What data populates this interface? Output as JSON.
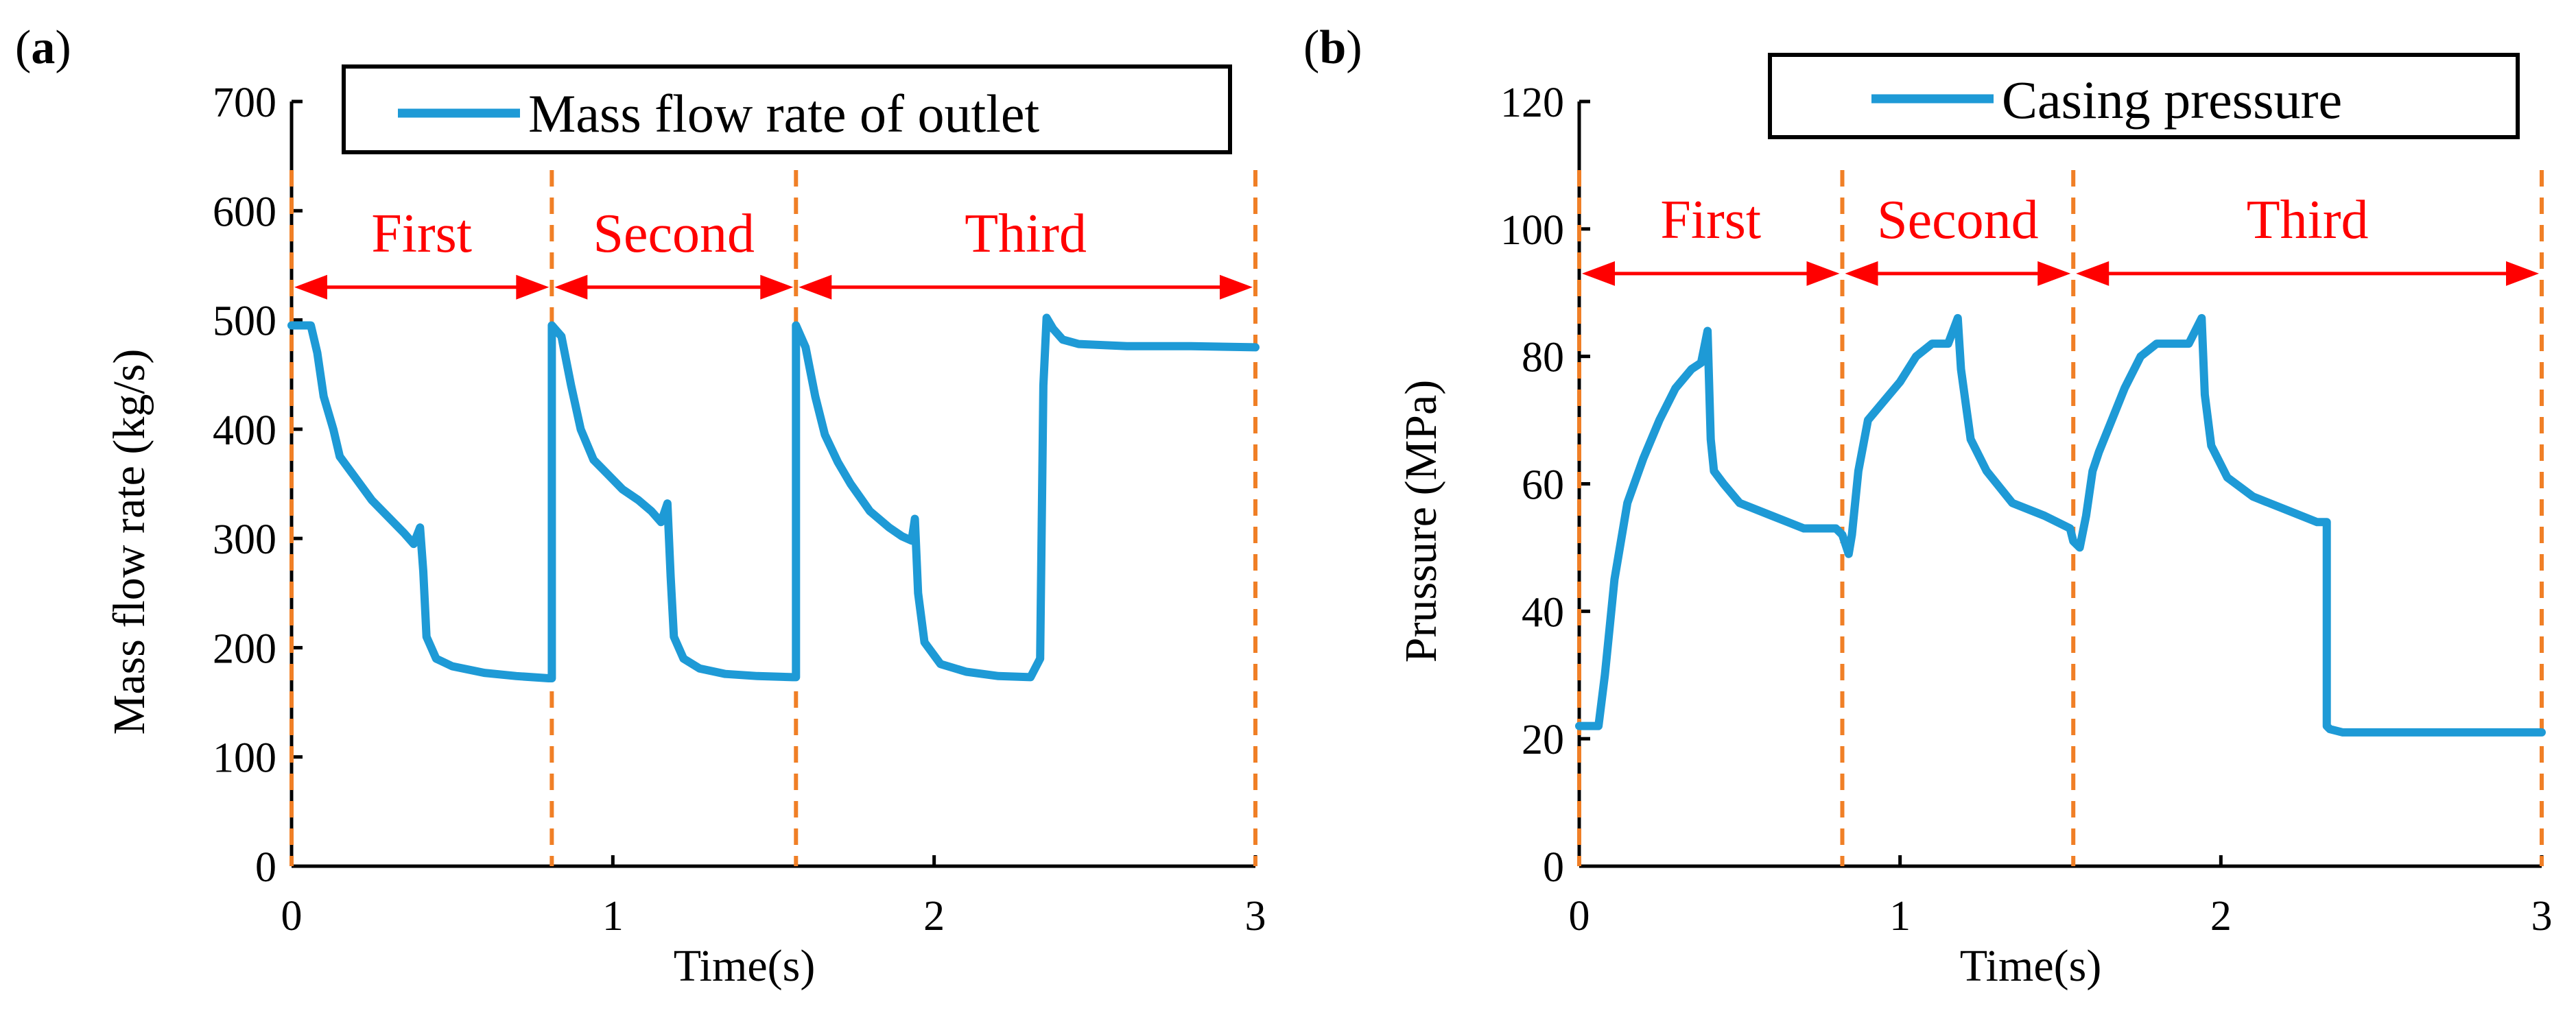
{
  "chart_data": [
    {
      "type": "line",
      "panel_label": "(a)",
      "title": "",
      "xlabel": "Time(s)",
      "ylabel": "Mass flow rate (kg/s)",
      "xlim": [
        0,
        3
      ],
      "ylim": [
        0,
        700
      ],
      "x_ticks": [
        "0",
        "1",
        "2",
        "3"
      ],
      "y_ticks": [
        "0",
        "100",
        "200",
        "300",
        "400",
        "500",
        "600",
        "700"
      ],
      "legend": {
        "position": "top-center",
        "entries": [
          "Mass flow rate of outlet"
        ]
      },
      "grid": false,
      "line_color": "#1e9ad6",
      "divider_color": "#f07f26",
      "phase_color": "#ff0000",
      "dividers_x": [
        0,
        0.81,
        1.57,
        3.0
      ],
      "phase_arrow_y": 530,
      "phases": [
        {
          "label": "First",
          "x_start": 0,
          "x_end": 0.81
        },
        {
          "label": "Second",
          "x_start": 0.81,
          "x_end": 1.57
        },
        {
          "label": "Third",
          "x_start": 1.57,
          "x_end": 3.0
        }
      ],
      "series": [
        {
          "name": "Mass flow rate of outlet",
          "x": [
            0,
            0.06,
            0.08,
            0.1,
            0.13,
            0.15,
            0.2,
            0.25,
            0.3,
            0.35,
            0.38,
            0.4,
            0.41,
            0.42,
            0.45,
            0.5,
            0.6,
            0.7,
            0.8,
            0.81,
            0.81,
            0.84,
            0.87,
            0.9,
            0.94,
            0.98,
            1.03,
            1.08,
            1.12,
            1.15,
            1.17,
            1.18,
            1.19,
            1.22,
            1.27,
            1.35,
            1.45,
            1.56,
            1.57,
            1.57,
            1.6,
            1.63,
            1.66,
            1.7,
            1.74,
            1.8,
            1.86,
            1.9,
            1.93,
            1.94,
            1.95,
            1.97,
            2.02,
            2.1,
            2.2,
            2.3,
            2.33,
            2.34,
            2.35,
            2.37,
            2.4,
            2.45,
            2.6,
            2.8,
            3.0
          ],
          "values": [
            495,
            495,
            470,
            430,
            400,
            375,
            355,
            335,
            320,
            305,
            295,
            310,
            270,
            210,
            190,
            183,
            177,
            174,
            172,
            172,
            495,
            485,
            440,
            400,
            372,
            360,
            345,
            335,
            325,
            315,
            332,
            265,
            210,
            190,
            181,
            176,
            174,
            173,
            173,
            495,
            475,
            430,
            395,
            370,
            350,
            325,
            310,
            302,
            298,
            318,
            250,
            205,
            185,
            178,
            174,
            173,
            190,
            440,
            502,
            492,
            482,
            478,
            476,
            476,
            475
          ]
        }
      ]
    },
    {
      "type": "line",
      "panel_label": "(b)",
      "title": "",
      "xlabel": "Time(s)",
      "ylabel": "Prussure (MPa)",
      "xlim": [
        0,
        3
      ],
      "ylim": [
        0,
        120
      ],
      "x_ticks": [
        "0",
        "1",
        "2",
        "3"
      ],
      "y_ticks": [
        "0",
        "20",
        "40",
        "60",
        "80",
        "100",
        "120"
      ],
      "legend": {
        "position": "top-right",
        "entries": [
          "Casing pressure"
        ]
      },
      "grid": false,
      "line_color": "#1e9ad6",
      "divider_color": "#f07f26",
      "phase_color": "#ff0000",
      "dividers_x": [
        0,
        0.82,
        1.54,
        3.0
      ],
      "phase_arrow_y": 93,
      "phases": [
        {
          "label": "First",
          "x_start": 0,
          "x_end": 0.82
        },
        {
          "label": "Second",
          "x_start": 0.82,
          "x_end": 1.54
        },
        {
          "label": "Third",
          "x_start": 1.54,
          "x_end": 3.0
        }
      ],
      "series": [
        {
          "name": "Casing pressure",
          "x": [
            0,
            0.06,
            0.08,
            0.11,
            0.15,
            0.2,
            0.25,
            0.3,
            0.35,
            0.38,
            0.4,
            0.41,
            0.42,
            0.45,
            0.5,
            0.6,
            0.7,
            0.8,
            0.82,
            0.84,
            0.85,
            0.87,
            0.9,
            0.95,
            1.0,
            1.05,
            1.1,
            1.15,
            1.18,
            1.19,
            1.22,
            1.27,
            1.35,
            1.45,
            1.53,
            1.54,
            1.56,
            1.58,
            1.6,
            1.62,
            1.66,
            1.7,
            1.75,
            1.8,
            1.85,
            1.9,
            1.94,
            1.95,
            1.97,
            2.02,
            2.1,
            2.2,
            2.3,
            2.33,
            2.33,
            2.34,
            2.38,
            2.5,
            3.0
          ],
          "values": [
            22,
            22,
            30,
            45,
            57,
            64,
            70,
            75,
            78,
            79,
            84,
            67,
            62,
            60,
            57,
            55,
            53,
            53,
            52,
            49,
            52,
            62,
            70,
            73,
            76,
            80,
            82,
            82,
            86,
            78,
            67,
            62,
            57,
            55,
            53,
            51,
            50,
            55,
            62,
            65,
            70,
            75,
            80,
            82,
            82,
            82,
            86,
            74,
            66,
            61,
            58,
            56,
            54,
            54,
            22,
            21.5,
            21,
            21,
            21
          ]
        }
      ]
    }
  ]
}
